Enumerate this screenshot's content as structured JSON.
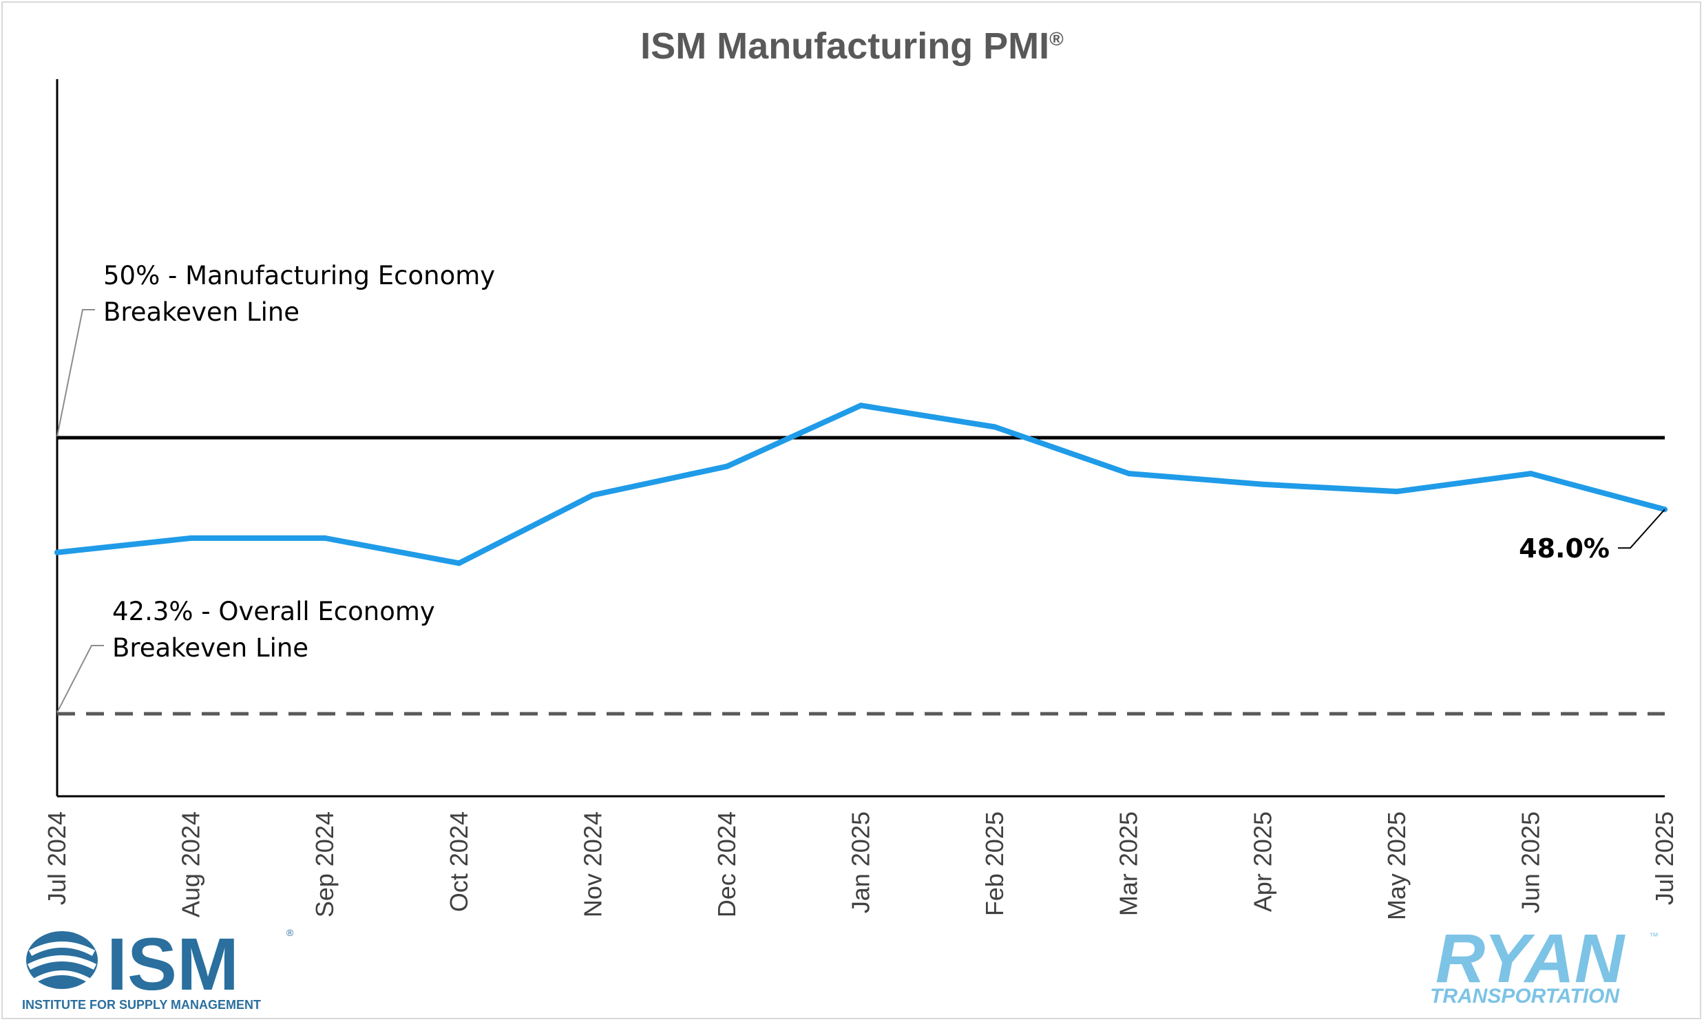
{
  "chart_data": {
    "type": "line",
    "title": "ISM Manufacturing PMI",
    "title_mark": "®",
    "x": [
      "Jul 2024",
      "Aug 2024",
      "Sep 2024",
      "Oct 2024",
      "Nov 2024",
      "Dec 2024",
      "Jan 2025",
      "Feb 2025",
      "Mar 2025",
      "Apr 2025",
      "May 2025",
      "Jun 2025",
      "Jul 2025"
    ],
    "series": [
      {
        "values": [
          46.8,
          47.2,
          47.2,
          46.5,
          48.4,
          49.2,
          50.9,
          50.3,
          49.0,
          48.7,
          48.5,
          49.0,
          48.0
        ],
        "color": "#1f9be8"
      }
    ],
    "ylim": [
      40,
      60
    ],
    "grid": false,
    "reference_lines": [
      {
        "value": 50,
        "label_line1": "50% - Manufacturing Economy",
        "label_line2": "Breakeven Line",
        "style": "solid",
        "color": "#000000"
      },
      {
        "value": 42.3,
        "label_line1": "42.3% - Overall Economy",
        "label_line2": "Breakeven Line",
        "style": "dashed",
        "color": "#595959"
      }
    ],
    "end_label": "48.0%"
  },
  "logos": {
    "ism_text": "ISM",
    "ism_mark": "®",
    "ism_tagline": "INSTITUTE FOR SUPPLY MANAGEMENT",
    "ryan_text": "RYAN",
    "ryan_mark": "™",
    "ryan_tagline": "TRANSPORTATION"
  },
  "colors": {
    "line": "#1f9be8",
    "ism_logo": "#2a6f9e",
    "ryan_logo": "#7cc3e6"
  }
}
